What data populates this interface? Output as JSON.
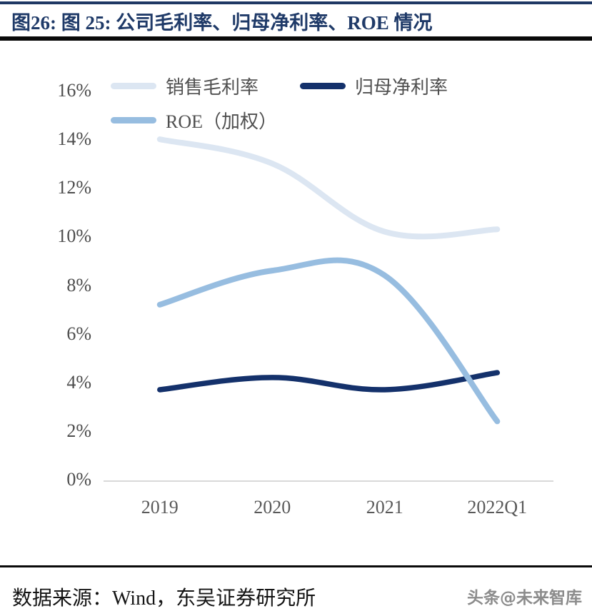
{
  "header": {
    "title": "图26:  图 25:  公司毛利率、归母净利率、ROE 情况"
  },
  "chart_data": {
    "type": "line",
    "smooth": true,
    "grid": false,
    "legend_position": "top-left",
    "categories": [
      "2019",
      "2020",
      "2021",
      "2022Q1"
    ],
    "series": [
      {
        "name": "销售毛利率",
        "color": "#dce6f2",
        "values": [
          14.0,
          13.0,
          10.2,
          10.3
        ]
      },
      {
        "name": "归母净利率",
        "color": "#14316b",
        "values": [
          3.7,
          4.2,
          3.7,
          4.4
        ]
      },
      {
        "name": "ROE（加权）",
        "color": "#97bde0",
        "values": [
          7.2,
          8.6,
          8.4,
          2.4
        ]
      }
    ],
    "ylim": [
      0,
      16
    ],
    "ytick_step": 2,
    "ytick_labels": [
      "0%",
      "2%",
      "4%",
      "6%",
      "8%",
      "10%",
      "12%",
      "14%",
      "16%"
    ],
    "xlabel": "",
    "ylabel": "",
    "axis_line_color": "#d9d9d9"
  },
  "footer": {
    "source_line": "数据来源：Wind，东吴证券研究所",
    "watermark": "头条@未来智库"
  }
}
